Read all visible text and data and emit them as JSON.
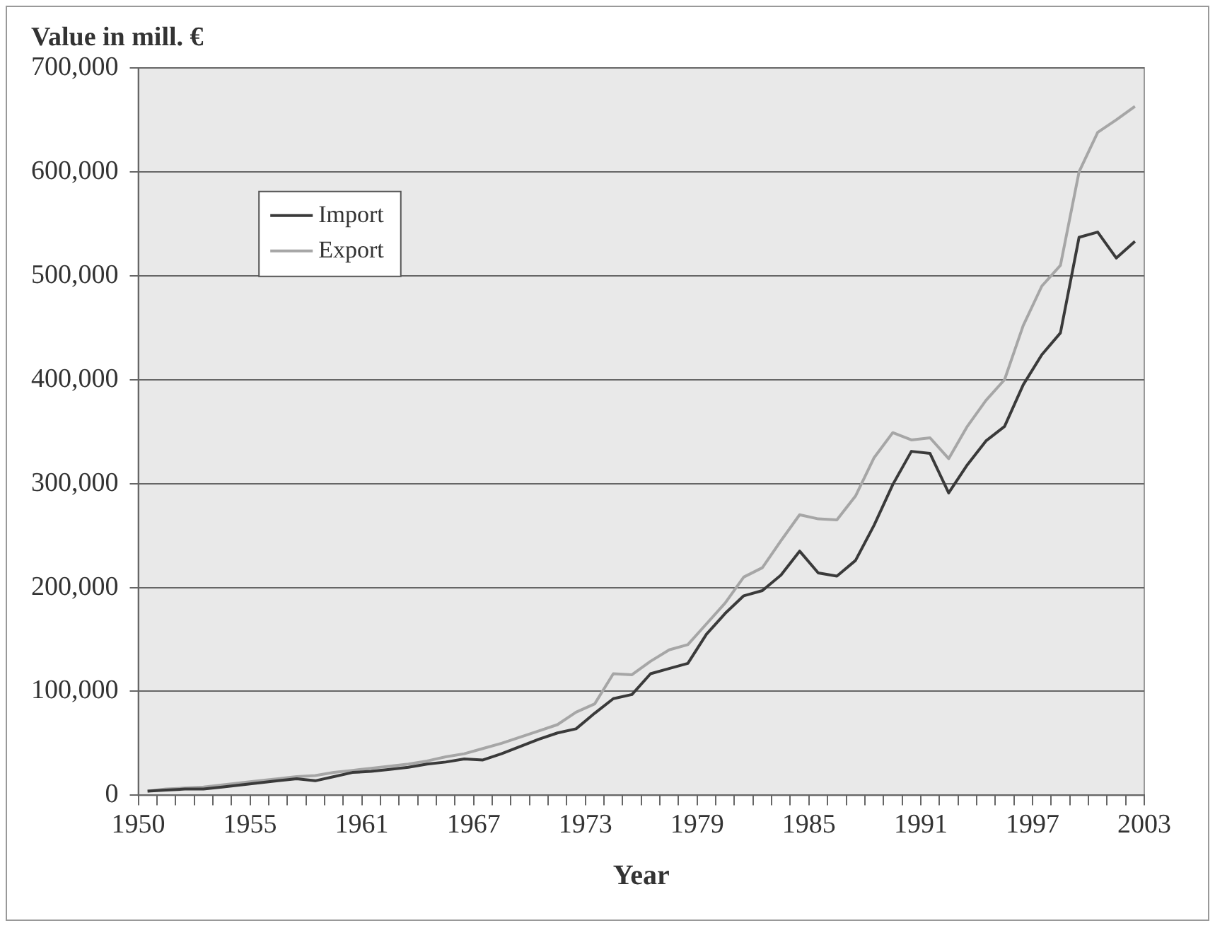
{
  "chart_data": {
    "type": "line",
    "xlabel": "Year",
    "ylabel": "Value in mill. €",
    "x": [
      1950,
      1951,
      1952,
      1953,
      1954,
      1955,
      1956,
      1957,
      1958,
      1959,
      1960,
      1961,
      1962,
      1963,
      1964,
      1965,
      1966,
      1967,
      1968,
      1969,
      1970,
      1971,
      1972,
      1973,
      1974,
      1975,
      1976,
      1977,
      1978,
      1979,
      1980,
      1981,
      1982,
      1983,
      1984,
      1985,
      1986,
      1987,
      1988,
      1989,
      1990,
      1991,
      1992,
      1993,
      1994,
      1995,
      1996,
      1997,
      1998,
      1999,
      2000,
      2001,
      2002,
      2003
    ],
    "series": [
      {
        "name": "Import",
        "color": "#3a3a3a",
        "values": [
          4000,
          5000,
          6000,
          6000,
          8000,
          10000,
          12000,
          14000,
          16000,
          14000,
          18000,
          22000,
          23000,
          25000,
          27000,
          30000,
          32000,
          35000,
          34000,
          40000,
          47000,
          54000,
          60000,
          64000,
          79000,
          93000,
          97000,
          117000,
          122000,
          127000,
          155000,
          175000,
          192000,
          197000,
          212000,
          235000,
          214000,
          211000,
          226000,
          260000,
          299000,
          331000,
          329000,
          291000,
          318000,
          341000,
          355000,
          395000,
          424000,
          445000,
          537000,
          542000,
          517000,
          533000
        ]
      },
      {
        "name": "Export",
        "color": "#a6a6a6",
        "values": [
          4000,
          6000,
          7000,
          8000,
          10000,
          12000,
          14000,
          16000,
          18000,
          19000,
          22000,
          24000,
          26000,
          28000,
          30000,
          33000,
          37000,
          40000,
          45000,
          50000,
          56000,
          62000,
          68000,
          80000,
          88000,
          117000,
          116000,
          129000,
          140000,
          145000,
          165000,
          185000,
          210000,
          219000,
          245000,
          270000,
          266000,
          265000,
          288000,
          325000,
          349000,
          342000,
          344000,
          324000,
          355000,
          380000,
          400000,
          452000,
          490000,
          510000,
          600000,
          638000,
          650000,
          663000
        ]
      }
    ],
    "xlim": [
      1949.5,
      2003.5
    ],
    "xticks": [
      {
        "value": 1949.5,
        "label": "1950"
      },
      {
        "value": 1950.5,
        "label": null
      },
      {
        "value": 1951.5,
        "label": null
      },
      {
        "value": 1952.5,
        "label": null
      },
      {
        "value": 1953.5,
        "label": null
      },
      {
        "value": 1954.5,
        "label": null
      },
      {
        "value": 1955.5,
        "label": "1955"
      },
      {
        "value": 1956.5,
        "label": null
      },
      {
        "value": 1957.5,
        "label": null
      },
      {
        "value": 1958.5,
        "label": null
      },
      {
        "value": 1959.5,
        "label": null
      },
      {
        "value": 1960.5,
        "label": null
      },
      {
        "value": 1961.5,
        "label": "1961"
      },
      {
        "value": 1962.5,
        "label": null
      },
      {
        "value": 1963.5,
        "label": null
      },
      {
        "value": 1964.5,
        "label": null
      },
      {
        "value": 1965.5,
        "label": null
      },
      {
        "value": 1966.5,
        "label": null
      },
      {
        "value": 1967.5,
        "label": "1967"
      },
      {
        "value": 1968.5,
        "label": null
      },
      {
        "value": 1969.5,
        "label": null
      },
      {
        "value": 1970.5,
        "label": null
      },
      {
        "value": 1971.5,
        "label": null
      },
      {
        "value": 1972.5,
        "label": null
      },
      {
        "value": 1973.5,
        "label": "1973"
      },
      {
        "value": 1974.5,
        "label": null
      },
      {
        "value": 1975.5,
        "label": null
      },
      {
        "value": 1976.5,
        "label": null
      },
      {
        "value": 1977.5,
        "label": null
      },
      {
        "value": 1978.5,
        "label": null
      },
      {
        "value": 1979.5,
        "label": "1979"
      },
      {
        "value": 1980.5,
        "label": null
      },
      {
        "value": 1981.5,
        "label": null
      },
      {
        "value": 1982.5,
        "label": null
      },
      {
        "value": 1983.5,
        "label": null
      },
      {
        "value": 1984.5,
        "label": null
      },
      {
        "value": 1985.5,
        "label": "1985"
      },
      {
        "value": 1986.5,
        "label": null
      },
      {
        "value": 1987.5,
        "label": null
      },
      {
        "value": 1988.5,
        "label": null
      },
      {
        "value": 1989.5,
        "label": null
      },
      {
        "value": 1990.5,
        "label": null
      },
      {
        "value": 1991.5,
        "label": "1991"
      },
      {
        "value": 1992.5,
        "label": null
      },
      {
        "value": 1993.5,
        "label": null
      },
      {
        "value": 1994.5,
        "label": null
      },
      {
        "value": 1995.5,
        "label": null
      },
      {
        "value": 1996.5,
        "label": null
      },
      {
        "value": 1997.5,
        "label": "1997"
      },
      {
        "value": 1998.5,
        "label": null
      },
      {
        "value": 1999.5,
        "label": null
      },
      {
        "value": 2000.5,
        "label": null
      },
      {
        "value": 2001.5,
        "label": null
      },
      {
        "value": 2002.5,
        "label": null
      },
      {
        "value": 2003.5,
        "label": "2003"
      }
    ],
    "ylim": [
      0,
      700000
    ],
    "yticks": [
      0,
      {
        "value": 100000,
        "label": "100,000"
      },
      {
        "value": 200000,
        "label": "200,000"
      },
      {
        "value": 300000,
        "label": "300,000"
      },
      {
        "value": 400000,
        "label": "400,000"
      },
      {
        "value": 500000,
        "label": "500,000"
      },
      {
        "value": 600000,
        "label": "600,000"
      },
      {
        "value": 700000,
        "label": "700,000"
      }
    ],
    "grid": "y",
    "legend": "top left",
    "marker": "none",
    "line_style": "solid"
  }
}
